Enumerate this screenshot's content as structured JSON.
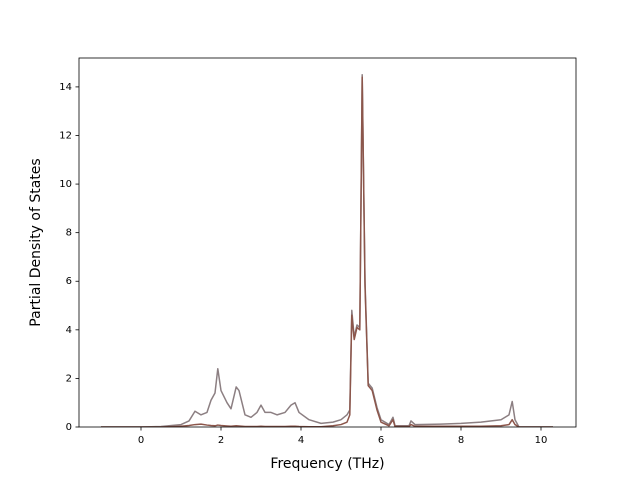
{
  "chart_data": {
    "type": "line",
    "x_label": "Frequency (THz)",
    "y_label": "Partial Density of States",
    "x": [
      -1,
      0,
      0.5,
      1.0,
      1.2,
      1.35,
      1.5,
      1.65,
      1.75,
      1.85,
      1.92,
      2.0,
      2.15,
      2.25,
      2.38,
      2.45,
      2.6,
      2.75,
      2.9,
      3.0,
      3.1,
      3.25,
      3.4,
      3.6,
      3.75,
      3.85,
      3.95,
      4.2,
      4.5,
      4.8,
      5.0,
      5.15,
      5.22,
      5.27,
      5.33,
      5.4,
      5.47,
      5.53,
      5.6,
      5.68,
      5.78,
      5.9,
      6.0,
      6.2,
      6.3,
      6.35,
      6.7,
      6.75,
      6.85,
      7.5,
      8.0,
      8.5,
      9.0,
      9.2,
      9.28,
      9.35,
      9.45,
      10.3
    ],
    "series": [
      {
        "color": "#8c7f82",
        "values": [
          0,
          0,
          0.02,
          0.1,
          0.25,
          0.65,
          0.5,
          0.6,
          1.1,
          1.4,
          2.4,
          1.5,
          1.0,
          0.75,
          1.65,
          1.5,
          0.5,
          0.4,
          0.6,
          0.9,
          0.6,
          0.6,
          0.5,
          0.6,
          0.9,
          1.0,
          0.6,
          0.3,
          0.15,
          0.2,
          0.3,
          0.5,
          0.7,
          4.8,
          3.7,
          4.2,
          4.1,
          14.5,
          6,
          1.8,
          1.6,
          0.8,
          0.3,
          0.1,
          0.4,
          0.05,
          0.05,
          0.25,
          0.1,
          0.12,
          0.15,
          0.2,
          0.3,
          0.5,
          1.05,
          0.3,
          0,
          0
        ]
      },
      {
        "color": "#8c564b",
        "values": [
          0,
          0,
          0,
          0.03,
          0.06,
          0.1,
          0.12,
          0.08,
          0.06,
          0.05,
          0.08,
          0.06,
          0.04,
          0.03,
          0.05,
          0.04,
          0.02,
          0.02,
          0.02,
          0.03,
          0.02,
          0.02,
          0.02,
          0.02,
          0.03,
          0.03,
          0.02,
          0.01,
          0.01,
          0.05,
          0.1,
          0.2,
          0.5,
          4.6,
          3.6,
          4.1,
          4.0,
          14.4,
          5.8,
          1.7,
          1.5,
          0.7,
          0.2,
          0.05,
          0.3,
          0.02,
          0.02,
          0.1,
          0.03,
          0.03,
          0.03,
          0.03,
          0.05,
          0.1,
          0.3,
          0.1,
          0,
          0
        ]
      }
    ],
    "xlim": [
      -1.55,
      10.875
    ],
    "ylim": [
      0,
      15.19
    ],
    "xticks": [
      0,
      2,
      4,
      6,
      8,
      10
    ],
    "yticks": [
      0,
      2,
      4,
      6,
      8,
      10,
      12,
      14
    ]
  }
}
